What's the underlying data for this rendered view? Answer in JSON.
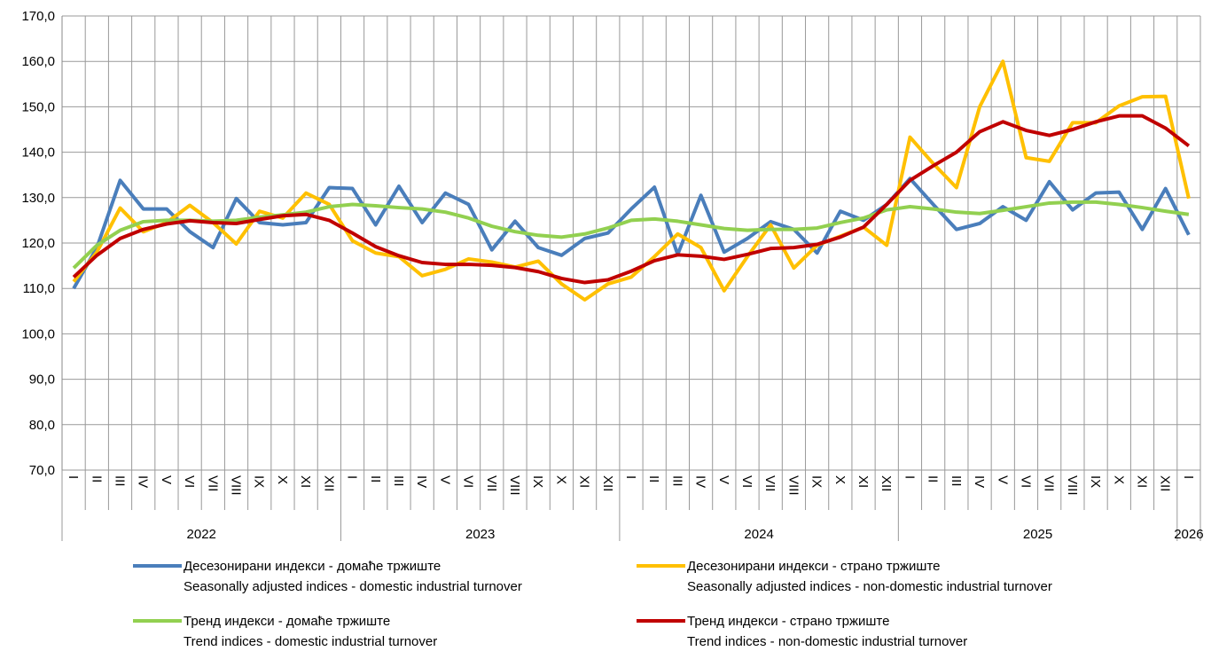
{
  "chart_data": {
    "type": "line",
    "ylim": [
      70,
      170
    ],
    "yticks": [
      {
        "value": 70,
        "label": "70,0"
      },
      {
        "value": 80,
        "label": "80,0"
      },
      {
        "value": 90,
        "label": "90,0"
      },
      {
        "value": 100,
        "label": "100,0"
      },
      {
        "value": 110,
        "label": "110,0"
      },
      {
        "value": 120,
        "label": "120,0"
      },
      {
        "value": 130,
        "label": "130,0"
      },
      {
        "value": 140,
        "label": "140,0"
      },
      {
        "value": 150,
        "label": "150,0"
      },
      {
        "value": 160,
        "label": "160,0"
      },
      {
        "value": 170,
        "label": "170,0"
      }
    ],
    "grid": true,
    "categories": [
      "I",
      "II",
      "III",
      "IV",
      "V",
      "VI",
      "VII",
      "VIII",
      "IX",
      "X",
      "XI",
      "XII",
      "I",
      "II",
      "III",
      "IV",
      "V",
      "VI",
      "VII",
      "VIII",
      "IX",
      "X",
      "XI",
      "XII",
      "I",
      "II",
      "III",
      "IV",
      "V",
      "VI",
      "VII",
      "VIII",
      "IX",
      "X",
      "XI",
      "XII",
      "I",
      "II",
      "III",
      "IV",
      "V",
      "VI",
      "VII",
      "VIII",
      "IX",
      "X",
      "XI",
      "XII",
      "I"
    ],
    "category_groups": [
      "2022",
      "2023",
      "2024",
      "2025",
      "2026"
    ],
    "series": [
      {
        "name": "Десезонирани индекси - домаће тржиште",
        "name_en": "Seasonally adjusted indices - domestic industrial turnover",
        "color": "#4a7ebb",
        "values": [
          110,
          119,
          133.8,
          127.5,
          127.5,
          122.5,
          119,
          129.8,
          124.5,
          124,
          124.5,
          132.2,
          132,
          124,
          132.5,
          124.5,
          131,
          128.5,
          118.5,
          124.8,
          119,
          117.3,
          121,
          122.2,
          127.5,
          132.3,
          117.5,
          130.5,
          118,
          121,
          124.7,
          123,
          117.8,
          127,
          125,
          128.5,
          134.2,
          128.5,
          123,
          124.3,
          128,
          125,
          133.5,
          127.3,
          131,
          131.2,
          123,
          132,
          121.8
        ]
      },
      {
        "name": "Десезонирани индекси - страно тржиште",
        "name_en": "Seasonally adjusted indices - non-domestic industrial turnover",
        "color": "#ffc000",
        "values": [
          111.5,
          118,
          127.7,
          122.5,
          124.5,
          128.3,
          124.5,
          119.8,
          127,
          125.5,
          131,
          128.5,
          120.5,
          117.8,
          117,
          112.8,
          114.2,
          116.5,
          115.8,
          114.7,
          116,
          111,
          107.5,
          111,
          112.5,
          117,
          122,
          119,
          109.5,
          117,
          124,
          114.5,
          119.5,
          121.5,
          123.5,
          119.5,
          143.3,
          137.5,
          132.2,
          150,
          160,
          138.8,
          138,
          146.5,
          146.5,
          150.2,
          152.2,
          152.3,
          129.8
        ]
      },
      {
        "name": "Тренд индекси - домаће тржиште",
        "name_en": "Trend indices - domestic industrial turnover",
        "color": "#92d050",
        "values": [
          114.5,
          119.5,
          122.8,
          124.7,
          125,
          125,
          124.8,
          125,
          125.7,
          126.2,
          126.8,
          128,
          128.5,
          128.2,
          127.8,
          127.5,
          126.8,
          125.5,
          123.7,
          122.5,
          121.7,
          121.3,
          122,
          123.3,
          125,
          125.3,
          124.8,
          124,
          123.2,
          122.8,
          123,
          123,
          123.3,
          124.5,
          125.5,
          127.3,
          128,
          127.5,
          126.8,
          126.5,
          127.2,
          128,
          128.8,
          129,
          129,
          128.5,
          127.8,
          127,
          126.3
        ]
      },
      {
        "name": "Тренд индекси - страно тржиште",
        "name_en": "Trend indices - non-domestic industrial turnover",
        "color": "#c00000",
        "values": [
          112.5,
          117.3,
          121,
          123,
          124.2,
          124.9,
          124.5,
          124.3,
          125.2,
          126,
          126.3,
          125,
          122.2,
          119.2,
          117.2,
          115.7,
          115.3,
          115.3,
          115.1,
          114.6,
          113.7,
          112.2,
          111.3,
          111.9,
          113.8,
          116.1,
          117.4,
          117.1,
          116.4,
          117.5,
          118.8,
          119,
          119.7,
          121.3,
          123.5,
          128.5,
          133.8,
          137,
          140,
          144.5,
          146.7,
          144.8,
          143.7,
          145,
          146.7,
          148,
          148,
          145.3,
          141.4
        ]
      }
    ]
  }
}
